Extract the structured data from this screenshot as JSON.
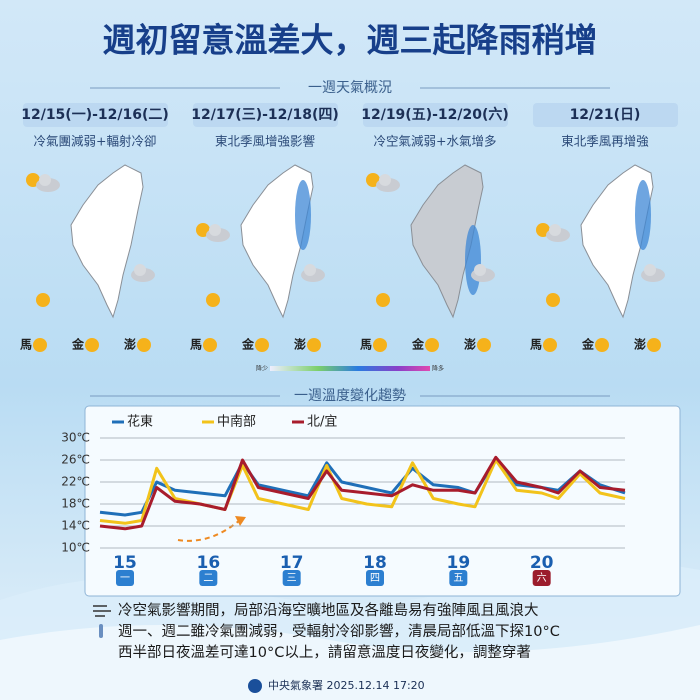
{
  "title": "週初留意溫差大，週三起降雨稍增",
  "overview": {
    "heading": "一週天氣概況",
    "days": [
      {
        "date": "12/15(一)-12/16(二)",
        "desc": "冷氣團減弱+輻射冷卻"
      },
      {
        "date": "12/17(三)-12/18(四)",
        "desc": "東北季風增強影響"
      },
      {
        "date": "12/19(五)-12/20(六)",
        "desc": "冷空氣減弱+水氣增多"
      },
      {
        "date": "12/21(日)",
        "desc": "東北季風再增強"
      }
    ],
    "islands": [
      "馬",
      "金",
      "澎"
    ],
    "rain_scale": [
      "降少",
      "降多"
    ]
  },
  "chart_data": {
    "type": "line",
    "title": "一週溫度變化趨勢",
    "x": [
      14.7,
      15.0,
      15.2,
      15.38,
      15.6,
      15.9,
      16.2,
      16.41,
      16.6,
      16.9,
      17.2,
      17.42,
      17.6,
      17.9,
      18.2,
      18.45,
      18.7,
      19.0,
      19.2,
      19.45,
      19.7,
      20.0,
      20.2,
      20.46,
      20.7,
      21.0
    ],
    "xlim": [
      14.7,
      21.0
    ],
    "xticks": [
      15,
      16,
      17,
      18,
      19,
      20
    ],
    "weekdays": [
      "一",
      "二",
      "三",
      "四",
      "五",
      "六"
    ],
    "ylim": [
      10,
      30
    ],
    "yticks": [
      {
        "value": 10,
        "label": "10℃"
      },
      {
        "value": 14,
        "label": "14℃"
      },
      {
        "value": 18,
        "label": "18℃"
      },
      {
        "value": 22,
        "label": "22℃"
      },
      {
        "value": 26,
        "label": "26℃"
      },
      {
        "value": 30,
        "label": "30℃"
      }
    ],
    "grid": true,
    "series": [
      {
        "name": "花東",
        "color": "#1f6fb8",
        "values": [
          16.5,
          16,
          16.5,
          22,
          20.5,
          20,
          19.5,
          25.5,
          21.5,
          20.5,
          19.5,
          25.5,
          22,
          21,
          20,
          24.5,
          21.5,
          21,
          20,
          26,
          21.5,
          21,
          20.5,
          24,
          21.5,
          20
        ]
      },
      {
        "name": "中南部",
        "color": "#f2c31b",
        "values": [
          15,
          14.5,
          15,
          24.5,
          19,
          18,
          17,
          25,
          19,
          18,
          17,
          25,
          19,
          18,
          17.5,
          25.5,
          19,
          18,
          17.5,
          26,
          20.5,
          20,
          19,
          23.5,
          20,
          19
        ]
      },
      {
        "name": "北/宜",
        "color": "#a81c2c",
        "values": [
          14,
          13.5,
          14,
          21,
          18.5,
          18,
          17,
          26,
          21,
          20,
          19,
          24,
          20.5,
          20,
          19.5,
          21.5,
          20.5,
          20.5,
          20,
          26.5,
          22,
          21,
          20,
          24,
          21,
          20.5
        ]
      }
    ]
  },
  "notes": [
    "冷空氣影響期間，局部沿海空曠地區及各離島易有強陣風且風浪大",
    "週一、週二雖冷氣團減弱，受輻射冷卻影響，清晨局部低溫下探10°C",
    "西半部日夜溫差可達10°C以上，請留意溫度日夜變化，調整穿著"
  ],
  "footer": "中央氣象署 2025.12.14  17:20"
}
